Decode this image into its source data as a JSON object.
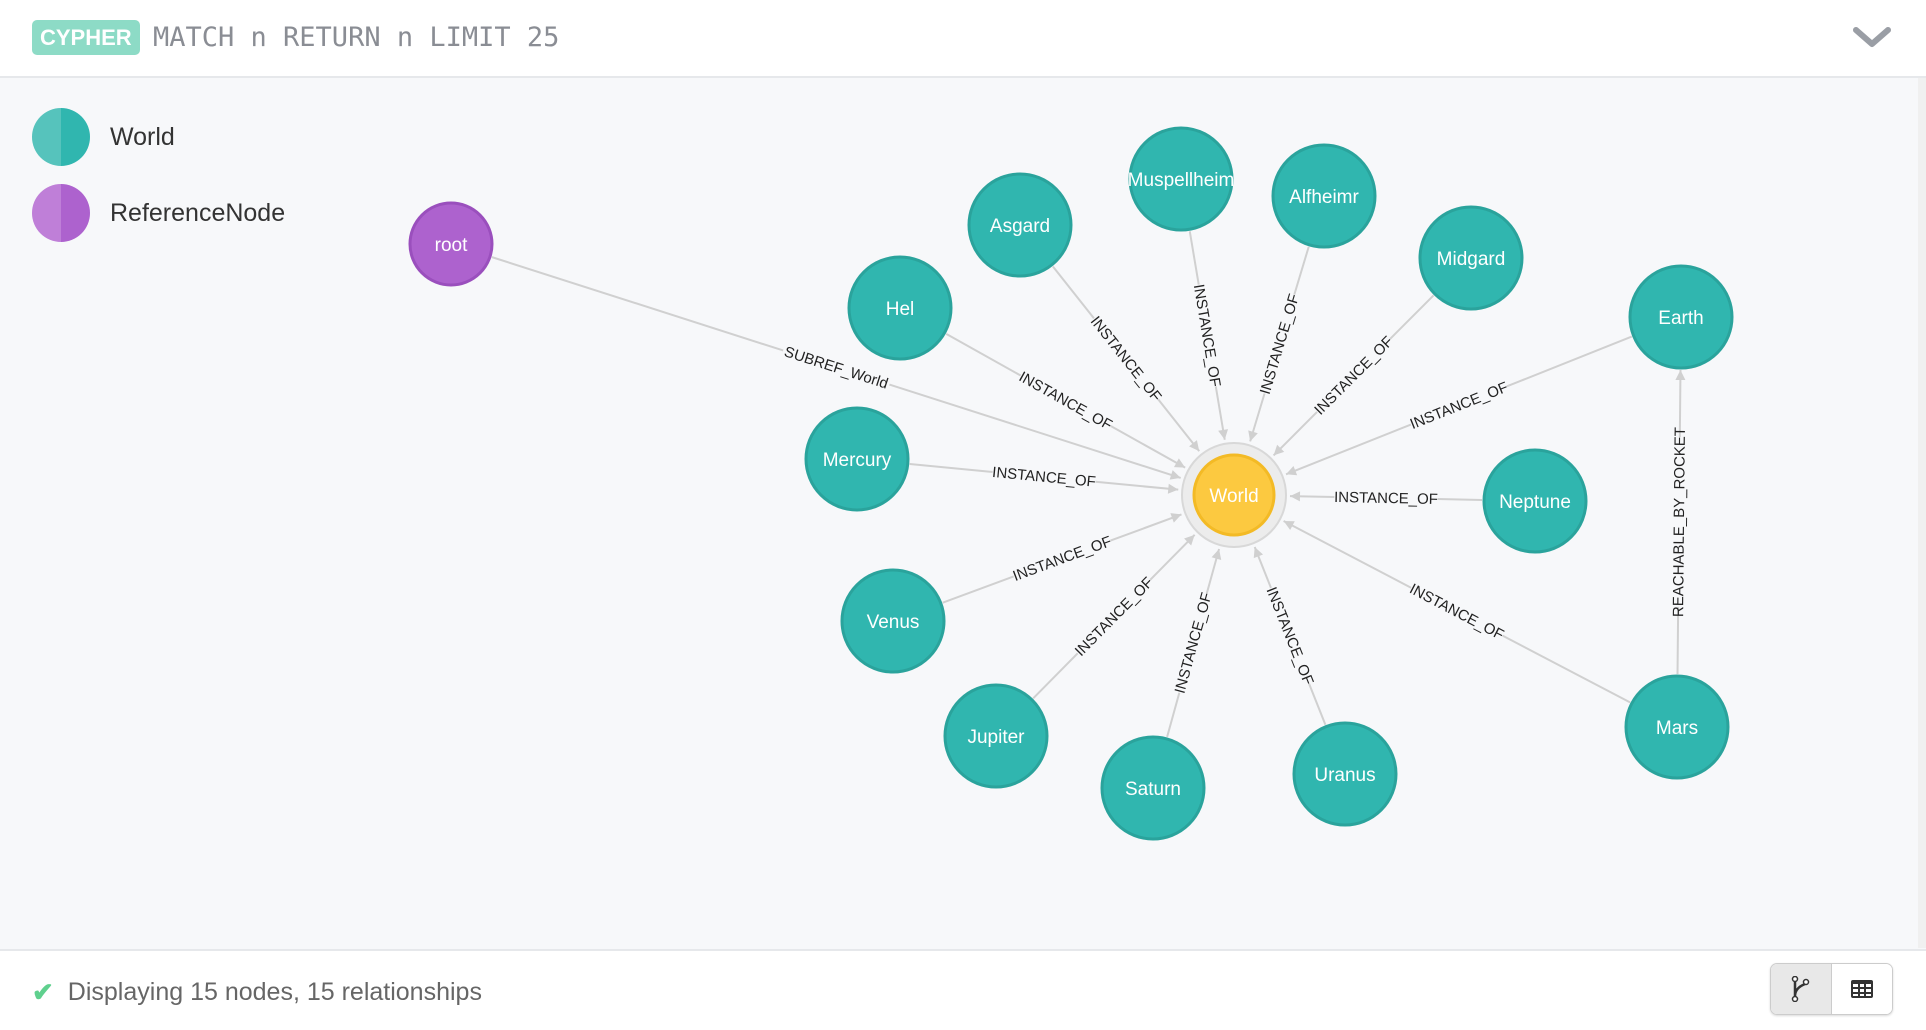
{
  "header": {
    "badge": "CYPHER",
    "query": "MATCH n RETURN n LIMIT 25",
    "collapse_icon": "chevron-down-icon"
  },
  "legend": [
    {
      "label": "World",
      "color": "#30b6af",
      "light": "#56c3bc"
    },
    {
      "label": "ReferenceNode",
      "color": "#ad62ce",
      "light": "#bf7fd8"
    }
  ],
  "colors": {
    "world": "#30b6af",
    "world_stroke": "#2aa39c",
    "reference": "#ad62ce",
    "reference_stroke": "#9a4fbd",
    "selected": "#fcc940",
    "selected_stroke": "#f3ba25",
    "edge": "#d0d0d0"
  },
  "graph": {
    "nodes": [
      {
        "id": "root",
        "caption": "root",
        "type": "reference"
      },
      {
        "id": "World",
        "caption": "World",
        "type": "selected"
      },
      {
        "id": "Asgard",
        "caption": "Asgard",
        "type": "world"
      },
      {
        "id": "Muspellheim",
        "caption": "Muspellheim",
        "type": "world"
      },
      {
        "id": "Alfheimr",
        "caption": "Alfheimr",
        "type": "world"
      },
      {
        "id": "Midgard",
        "caption": "Midgard",
        "type": "world"
      },
      {
        "id": "Earth",
        "caption": "Earth",
        "type": "world"
      },
      {
        "id": "Hel",
        "caption": "Hel",
        "type": "world"
      },
      {
        "id": "Mercury",
        "caption": "Mercury",
        "type": "world"
      },
      {
        "id": "Neptune",
        "caption": "Neptune",
        "type": "world"
      },
      {
        "id": "Venus",
        "caption": "Venus",
        "type": "world"
      },
      {
        "id": "Jupiter",
        "caption": "Jupiter",
        "type": "world"
      },
      {
        "id": "Saturn",
        "caption": "Saturn",
        "type": "world"
      },
      {
        "id": "Uranus",
        "caption": "Uranus",
        "type": "world"
      },
      {
        "id": "Mars",
        "caption": "Mars",
        "type": "world"
      }
    ],
    "relationships": [
      {
        "from": "root",
        "to": "World",
        "type": "SUBREF_World"
      },
      {
        "from": "Asgard",
        "to": "World",
        "type": "INSTANCE_OF"
      },
      {
        "from": "Muspellheim",
        "to": "World",
        "type": "INSTANCE_OF"
      },
      {
        "from": "Alfheimr",
        "to": "World",
        "type": "INSTANCE_OF"
      },
      {
        "from": "Midgard",
        "to": "World",
        "type": "INSTANCE_OF"
      },
      {
        "from": "Earth",
        "to": "World",
        "type": "INSTANCE_OF"
      },
      {
        "from": "Hel",
        "to": "World",
        "type": "INSTANCE_OF"
      },
      {
        "from": "Mercury",
        "to": "World",
        "type": "INSTANCE_OF"
      },
      {
        "from": "Neptune",
        "to": "World",
        "type": "INSTANCE_OF"
      },
      {
        "from": "Venus",
        "to": "World",
        "type": "INSTANCE_OF"
      },
      {
        "from": "Jupiter",
        "to": "World",
        "type": "INSTANCE_OF"
      },
      {
        "from": "Saturn",
        "to": "World",
        "type": "INSTANCE_OF"
      },
      {
        "from": "Uranus",
        "to": "World",
        "type": "INSTANCE_OF"
      },
      {
        "from": "Mars",
        "to": "World",
        "type": "INSTANCE_OF"
      },
      {
        "from": "Mars",
        "to": "Earth",
        "type": "REACHABLE_BY_ROCKET"
      }
    ]
  },
  "footer": {
    "status": "Displaying 15 nodes, 15 relationships",
    "status_icon": "check-icon",
    "graph_view_icon": "graph-icon",
    "table_view_icon": "table-icon"
  }
}
